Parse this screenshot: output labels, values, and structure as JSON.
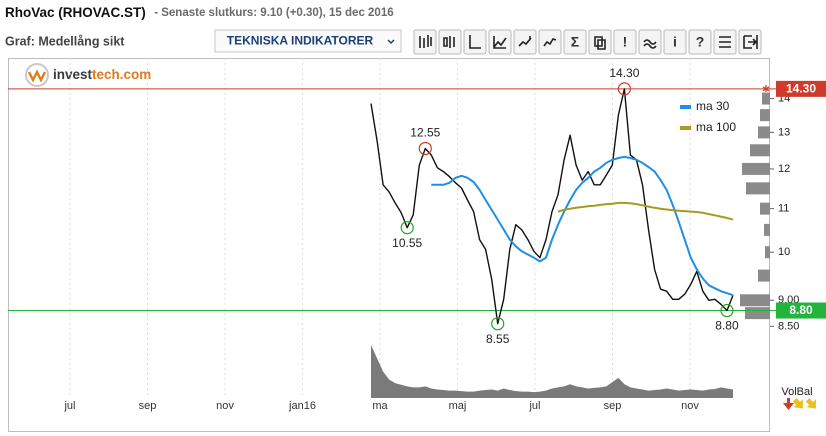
{
  "header": {
    "title": "RhoVac (RHOVAC.ST)",
    "subtitle": "- Senaste slutkurs: 9.10 (+0.30), 15 dec 2016",
    "graph_label": "Graf: Medellång sikt",
    "indicator_menu": "TEKNISKA INDIKATORER",
    "toolbar_glyphs": [
      "Σ",
      "!",
      "i",
      "?"
    ]
  },
  "logo": {
    "text_dark": "invest",
    "text_orange": "tech.com"
  },
  "chart_data": {
    "type": "line",
    "log_scale": true,
    "ylim": [
      8.25,
      15.3
    ],
    "yticks": [
      {
        "value": 8.5,
        "label": "8.50"
      },
      {
        "value": 9,
        "label": "9.00"
      },
      10,
      11,
      12,
      13,
      14
    ],
    "x_tick_labels": [
      "jul",
      "sep",
      "nov",
      "jan16",
      "ma",
      "maj",
      "jul",
      "sep",
      "nov"
    ],
    "x_grid": true,
    "legend": "upper right",
    "series": [
      {
        "color": "#111111",
        "values": [
          13.85,
          12.78,
          11.59,
          11.41,
          11.14,
          10.9,
          10.55,
          10.85,
          12.1,
          12.55,
          12.37,
          12.03,
          11.93,
          11.8,
          11.64,
          11.51,
          11.21,
          10.93,
          10.28,
          10.06,
          9.42,
          8.55,
          9.02,
          10.06,
          10.62,
          10.5,
          10.28,
          10.02,
          9.88,
          10.28,
          10.93,
          11.34,
          12.24,
          12.92,
          12.1,
          11.71,
          11.93,
          11.59,
          11.59,
          11.84,
          12.1,
          13.5,
          14.3,
          12.37,
          12.24,
          11.59,
          10.51,
          9.63,
          9.22,
          9.18,
          9.02,
          9.02,
          9.12,
          9.32,
          9.59,
          9.18,
          9.0,
          9.02,
          8.92,
          8.8,
          9.1
        ]
      },
      {
        "name": "ma  30",
        "color": "#1f8fe5",
        "values": [
          null,
          null,
          null,
          null,
          null,
          null,
          null,
          null,
          null,
          null,
          11.59,
          11.59,
          11.59,
          11.64,
          11.77,
          11.82,
          11.77,
          11.66,
          11.46,
          11.21,
          10.97,
          10.74,
          10.51,
          10.28,
          10.13,
          10.02,
          9.95,
          9.88,
          9.8,
          9.88,
          10.28,
          10.62,
          10.93,
          11.21,
          11.46,
          11.64,
          11.77,
          11.93,
          12.03,
          12.16,
          12.24,
          12.29,
          12.32,
          12.29,
          12.24,
          12.16,
          12.05,
          11.93,
          11.71,
          11.46,
          11.09,
          10.69,
          10.28,
          9.88,
          9.63,
          9.44,
          9.3,
          9.24,
          9.18,
          9.14,
          9.1
        ]
      },
      {
        "name": "ma  100",
        "color": "#a89a1c",
        "values": [
          null,
          null,
          null,
          null,
          null,
          null,
          null,
          null,
          null,
          null,
          null,
          null,
          null,
          null,
          null,
          null,
          null,
          null,
          null,
          null,
          null,
          null,
          null,
          null,
          null,
          null,
          null,
          null,
          null,
          null,
          null,
          10.93,
          10.97,
          11.0,
          11.02,
          11.04,
          11.06,
          11.07,
          11.09,
          11.11,
          11.12,
          11.14,
          11.14,
          11.13,
          11.11,
          11.08,
          11.05,
          11.02,
          11.0,
          10.98,
          10.96,
          10.95,
          10.94,
          10.93,
          10.92,
          10.9,
          10.87,
          10.84,
          10.81,
          10.78,
          10.74
        ]
      }
    ],
    "annotations": [
      {
        "value": 12.55,
        "label": "12.55",
        "color": "#d03a2a",
        "position": "above"
      },
      {
        "value": 10.55,
        "label": "10.55",
        "color": "#2ca02c",
        "position": "below"
      },
      {
        "value": 14.3,
        "label": "14.30",
        "color": "#d03a2a",
        "position": "above"
      },
      {
        "value": 8.55,
        "label": "8.55",
        "color": "#2ca02c",
        "position": "below"
      },
      {
        "value": 8.8,
        "label": "8.80",
        "color": "#2ca02c",
        "position": "below"
      }
    ],
    "reference_lines": [
      {
        "value": 14.3,
        "label": "14.30",
        "color": "#d03a2a"
      },
      {
        "value": 8.8,
        "label": "8.80",
        "color": "#22b43c"
      }
    ],
    "volume": {
      "color": "#7a7a7a",
      "values": [
        100,
        75,
        50,
        35,
        28,
        25,
        22,
        20,
        20,
        22,
        18,
        16,
        15,
        14,
        14,
        13,
        12,
        12,
        14,
        15,
        16,
        14,
        18,
        15,
        13,
        12,
        12,
        11,
        12,
        14,
        18,
        20,
        22,
        26,
        22,
        20,
        18,
        19,
        20,
        22,
        30,
        38,
        26,
        20,
        18,
        16,
        14,
        15,
        16,
        18,
        16,
        14,
        15,
        16,
        15,
        14,
        16,
        17,
        20,
        18,
        16
      ]
    },
    "volume_profile": {
      "color": "#8a8a8a",
      "levels": [
        14.0,
        13.5,
        13.0,
        12.5,
        12.0,
        11.5,
        11.0,
        10.5,
        10.0,
        9.5,
        9.0,
        8.75
      ],
      "values": [
        8,
        10,
        12,
        20,
        28,
        24,
        10,
        6,
        5,
        12,
        30,
        25
      ]
    },
    "volume_label": "VolBal"
  }
}
